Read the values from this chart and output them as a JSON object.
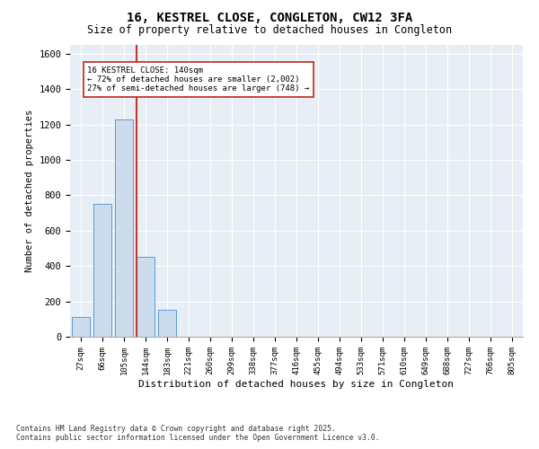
{
  "title1": "16, KESTREL CLOSE, CONGLETON, CW12 3FA",
  "title2": "Size of property relative to detached houses in Congleton",
  "xlabel": "Distribution of detached houses by size in Congleton",
  "ylabel": "Number of detached properties",
  "categories": [
    "27sqm",
    "66sqm",
    "105sqm",
    "144sqm",
    "183sqm",
    "221sqm",
    "260sqm",
    "299sqm",
    "338sqm",
    "377sqm",
    "416sqm",
    "455sqm",
    "494sqm",
    "533sqm",
    "571sqm",
    "610sqm",
    "649sqm",
    "688sqm",
    "727sqm",
    "766sqm",
    "805sqm"
  ],
  "values": [
    110,
    750,
    1230,
    450,
    150,
    0,
    0,
    0,
    0,
    0,
    0,
    0,
    0,
    0,
    0,
    0,
    0,
    0,
    0,
    0,
    0
  ],
  "bar_color": "#ccdcec",
  "bar_edge_color": "#5b9bd5",
  "vline_color": "#c0392b",
  "annotation_text": "16 KESTREL CLOSE: 140sqm\n← 72% of detached houses are smaller (2,002)\n27% of semi-detached houses are larger (748) →",
  "annotation_box_color": "white",
  "annotation_box_edge": "#c0392b",
  "ylim": [
    0,
    1650
  ],
  "yticks": [
    0,
    200,
    400,
    600,
    800,
    1000,
    1200,
    1400,
    1600
  ],
  "background_color": "#e8eef5",
  "grid_color": "white",
  "footnote1": "Contains HM Land Registry data © Crown copyright and database right 2025.",
  "footnote2": "Contains public sector information licensed under the Open Government Licence v3.0."
}
